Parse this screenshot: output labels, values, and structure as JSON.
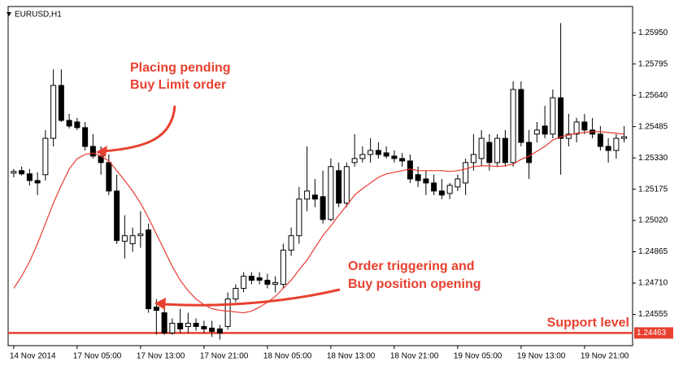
{
  "chart_data": {
    "type": "candlestick",
    "title": "EURUSD,H1",
    "categories": [
      "14 Nov 2014",
      null,
      null,
      null,
      null,
      null,
      null,
      null,
      "17 Nov 05:00",
      null,
      null,
      null,
      null,
      null,
      null,
      null,
      "17 Nov 13:00",
      null,
      null,
      null,
      null,
      null,
      null,
      null,
      "17 Nov 21:00",
      null,
      null,
      null,
      null,
      null,
      null,
      null,
      "18 Nov 05:00",
      null,
      null,
      null,
      null,
      null,
      null,
      null,
      "18 Nov 13:00",
      null,
      null,
      null,
      null,
      null,
      null,
      null,
      "18 Nov 21:00",
      null,
      null,
      null,
      null,
      null,
      null,
      null,
      "19 Nov 05:00",
      null,
      null,
      null,
      null,
      null,
      null,
      null,
      "19 Nov 13:00",
      null,
      null,
      null,
      null,
      null,
      null,
      null,
      "19 Nov 21:00",
      null,
      null,
      null,
      null,
      null
    ],
    "open": [
      1.25255,
      1.25267,
      1.25251,
      1.25218,
      1.25247,
      1.25427,
      1.25689,
      1.25516,
      1.25508,
      1.2548,
      1.25387,
      1.25339,
      1.25307,
      1.25166,
      1.24917,
      1.24905,
      1.24945,
      1.24973,
      1.24591,
      1.24563,
      1.24463,
      1.24511,
      1.24495,
      1.24511,
      1.24495,
      1.24487,
      1.24483,
      1.24495,
      1.24631,
      1.24684,
      1.24744,
      1.24736,
      1.24724,
      1.24704,
      1.24704,
      1.24873,
      1.24945,
      1.25126,
      1.25146,
      1.25138,
      1.25025,
      1.25267,
      1.25106,
      1.25307,
      1.25327,
      1.25347,
      1.25367,
      1.25355,
      1.25339,
      1.25327,
      1.25315,
      1.25247,
      1.25226,
      1.25206,
      1.25166,
      1.25154,
      1.25186,
      1.25206,
      1.25307,
      1.25327,
      1.25407,
      1.25307,
      1.25427,
      1.25307,
      1.25669,
      1.25407,
      1.25448,
      1.25488,
      1.25448,
      1.25628,
      1.25427,
      1.25448,
      1.25508,
      1.25468,
      1.25448,
      1.25387,
      1.25367,
      1.25427
    ],
    "high": [
      1.25275,
      1.25287,
      1.25275,
      1.25259,
      1.25468,
      1.25769,
      1.25769,
      1.25548,
      1.25528,
      1.25508,
      1.25448,
      1.25387,
      1.25347,
      1.25247,
      1.25046,
      1.24985,
      1.25066,
      1.25005,
      1.24631,
      1.24615,
      1.24535,
      1.24583,
      1.24563,
      1.24535,
      1.24523,
      1.24523,
      1.24503,
      1.24664,
      1.24704,
      1.24764,
      1.24764,
      1.24764,
      1.24756,
      1.24744,
      1.24905,
      1.24985,
      1.25186,
      1.25387,
      1.25226,
      1.25267,
      1.25327,
      1.25307,
      1.25307,
      1.25448,
      1.25387,
      1.25427,
      1.25407,
      1.25387,
      1.25367,
      1.25355,
      1.25347,
      1.25287,
      1.25267,
      1.25247,
      1.25226,
      1.25206,
      1.25247,
      1.25327,
      1.25448,
      1.25468,
      1.25448,
      1.25448,
      1.25468,
      1.25709,
      1.25709,
      1.25468,
      1.25508,
      1.25588,
      1.25669,
      1.25998,
      1.25548,
      1.25528,
      1.25548,
      1.25528,
      1.25488,
      1.25427,
      1.25448,
      1.25488
    ],
    "low": [
      1.25234,
      1.25243,
      1.25194,
      1.25146,
      1.25218,
      1.25387,
      1.25508,
      1.25476,
      1.25468,
      1.25367,
      1.25327,
      1.25247,
      1.25146,
      1.24905,
      1.24832,
      1.24865,
      1.24885,
      1.24563,
      1.24455,
      1.24455,
      1.24455,
      1.24463,
      1.24463,
      1.24475,
      1.24463,
      1.24443,
      1.2443,
      1.24479,
      1.24615,
      1.24664,
      1.24704,
      1.24704,
      1.24684,
      1.24664,
      1.24684,
      1.24845,
      1.24905,
      1.25066,
      1.25086,
      1.25005,
      1.25017,
      1.25086,
      1.25086,
      1.25287,
      1.25307,
      1.25307,
      1.25327,
      1.25327,
      1.25307,
      1.25287,
      1.25206,
      1.25186,
      1.25146,
      1.25146,
      1.25126,
      1.25126,
      1.25166,
      1.25146,
      1.25267,
      1.25287,
      1.25267,
      1.25287,
      1.25287,
      1.25287,
      1.25387,
      1.25226,
      1.25407,
      1.25427,
      1.25427,
      1.25247,
      1.25387,
      1.25407,
      1.25448,
      1.25427,
      1.25367,
      1.25307,
      1.25327,
      1.25407
    ],
    "close": [
      1.25263,
      1.25251,
      1.25218,
      1.25206,
      1.25427,
      1.25689,
      1.25516,
      1.25488,
      1.2548,
      1.25387,
      1.25339,
      1.25307,
      1.25166,
      1.24921,
      1.24945,
      1.24945,
      1.24953,
      1.24583,
      1.24575,
      1.24463,
      1.24511,
      1.24483,
      1.24511,
      1.24495,
      1.24483,
      1.24471,
      1.24463,
      1.24631,
      1.24684,
      1.24744,
      1.24724,
      1.24724,
      1.24704,
      1.24712,
      1.24873,
      1.24945,
      1.25126,
      1.25166,
      1.25126,
      1.25025,
      1.25287,
      1.25106,
      1.25287,
      1.25327,
      1.25347,
      1.25367,
      1.25347,
      1.25339,
      1.25327,
      1.25315,
      1.25226,
      1.25218,
      1.25206,
      1.25166,
      1.25146,
      1.25194,
      1.25226,
      1.25307,
      1.25347,
      1.25427,
      1.25307,
      1.25427,
      1.25307,
      1.25669,
      1.25407,
      1.25307,
      1.25468,
      1.25448,
      1.25628,
      1.25427,
      1.25448,
      1.25508,
      1.25468,
      1.25448,
      1.25387,
      1.25367,
      1.25427,
      1.25435
    ],
    "bull_color": "#ffffff",
    "bear_color": "#000000",
    "moving_average": {
      "color": "#e8392f",
      "values": [
        1.24684,
        1.24744,
        1.24816,
        1.24905,
        1.25005,
        1.25106,
        1.25194,
        1.25275,
        1.25327,
        1.25347,
        1.25355,
        1.25339,
        1.25315,
        1.25267,
        1.25218,
        1.25166,
        1.25106,
        1.25033,
        1.24953,
        1.24873,
        1.24792,
        1.24724,
        1.24672,
        1.24631,
        1.24603,
        1.24583,
        1.24575,
        1.24571,
        1.24567,
        1.24563,
        1.24571,
        1.24591,
        1.24615,
        1.24644,
        1.24684,
        1.24724,
        1.24776,
        1.24824,
        1.24885,
        1.24945,
        1.24993,
        1.25046,
        1.25094,
        1.25146,
        1.25178,
        1.25206,
        1.25234,
        1.25251,
        1.25259,
        1.25267,
        1.25275,
        1.25267,
        1.25267,
        1.25267,
        1.25267,
        1.25263,
        1.25267,
        1.25275,
        1.25287,
        1.25291,
        1.25291,
        1.25287,
        1.25291,
        1.25299,
        1.25323,
        1.25339,
        1.25363,
        1.25387,
        1.25419,
        1.25435,
        1.25443,
        1.25452,
        1.25456,
        1.2546,
        1.2546,
        1.25456,
        1.25452,
        1.25448
      ]
    },
    "support_level": {
      "value": 1.24463,
      "label": "Support level",
      "color": "#e8402f"
    },
    "ylim": [
      1.244,
      1.2608
    ],
    "yticks": [
      {
        "value": 1.2595,
        "label": "1.25950"
      },
      1.25795,
      {
        "value": 1.2564,
        "label": "1.25640"
      },
      1.25485,
      {
        "value": 1.2533,
        "label": "1.25330"
      },
      1.25175,
      {
        "value": 1.2502,
        "label": "1.25020"
      },
      1.24865,
      {
        "value": 1.2471,
        "label": "1.24710"
      },
      1.24555
    ],
    "annotations": [
      {
        "lines": [
          "Placing pending",
          "Buy Limit order"
        ]
      },
      {
        "lines": [
          "Order triggering and",
          "Buy position opening"
        ]
      }
    ]
  }
}
